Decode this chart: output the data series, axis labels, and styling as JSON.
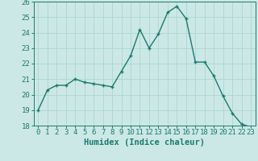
{
  "x": [
    0,
    1,
    2,
    3,
    4,
    5,
    6,
    7,
    8,
    9,
    10,
    11,
    12,
    13,
    14,
    15,
    16,
    17,
    18,
    19,
    20,
    21,
    22,
    23
  ],
  "y": [
    19.0,
    20.3,
    20.6,
    20.6,
    21.0,
    20.8,
    20.7,
    20.6,
    20.5,
    21.5,
    22.5,
    24.2,
    23.0,
    23.9,
    25.3,
    25.7,
    24.9,
    22.1,
    22.1,
    21.2,
    19.9,
    18.8,
    18.1,
    17.9
  ],
  "line_color": "#1a7a6e",
  "marker": "+",
  "marker_size": 4,
  "bg_color": "#cce8e6",
  "grid_color": "#b0d8d5",
  "tick_color": "#1a7a6e",
  "xlabel": "Humidex (Indice chaleur)",
  "ylim": [
    18,
    26
  ],
  "xlim": [
    -0.5,
    23.5
  ],
  "yticks": [
    18,
    19,
    20,
    21,
    22,
    23,
    24,
    25,
    26
  ],
  "xticks": [
    0,
    1,
    2,
    3,
    4,
    5,
    6,
    7,
    8,
    9,
    10,
    11,
    12,
    13,
    14,
    15,
    16,
    17,
    18,
    19,
    20,
    21,
    22,
    23
  ],
  "xlabel_fontsize": 7.5,
  "tick_fontsize": 6.5,
  "linewidth": 1.0,
  "marker_size_line": 3.5
}
